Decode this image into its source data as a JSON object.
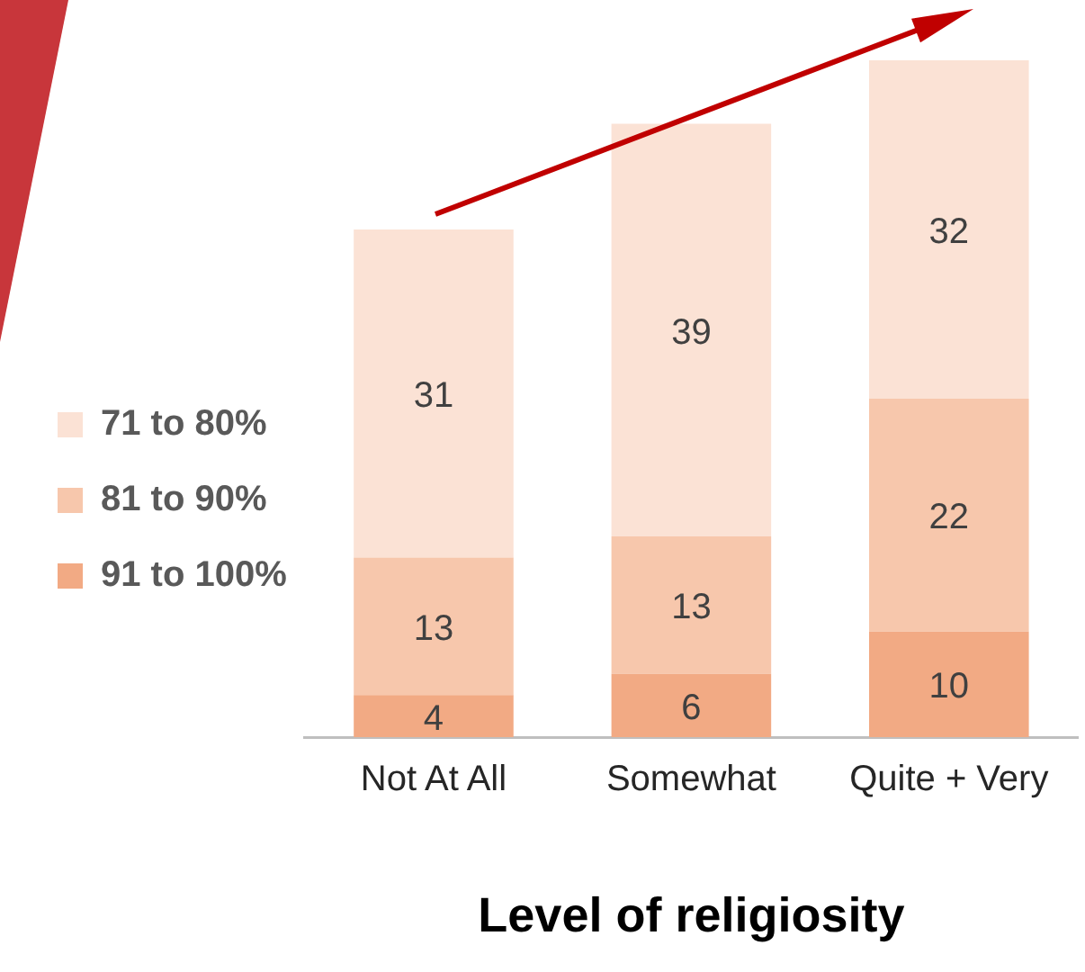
{
  "chart_data": {
    "type": "bar",
    "stacked": true,
    "xlabel": "Level of religiosity",
    "categories": [
      "Not At All",
      "Somewhat",
      "Quite + Very"
    ],
    "series": [
      {
        "name": "91 to 100%",
        "color": "#f2aa84",
        "values": [
          4,
          6,
          10
        ]
      },
      {
        "name": "81 to 90%",
        "color": "#f7c7ac",
        "values": [
          13,
          13,
          22
        ]
      },
      {
        "name": "71 to 80%",
        "color": "#fbe2d5",
        "values": [
          31,
          39,
          32
        ]
      }
    ],
    "data_labels": true,
    "legend": "left",
    "grid": false
  }
}
